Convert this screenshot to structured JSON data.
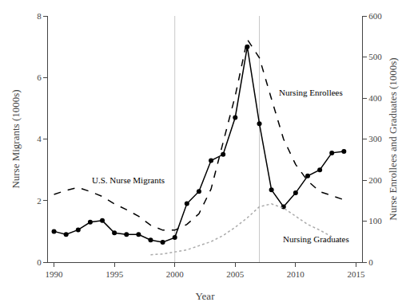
{
  "chart_data": {
    "type": "line",
    "x_label": "Year",
    "y_label": "Nurse Migrants (1000s)",
    "y2_label": "Nurse Enrollees and Graduates (1000s)",
    "series": [
      {
        "name": "Nursing Enrollees",
        "axis": "y2",
        "color": "#000000",
        "line_style": "dashed",
        "x": [
          1990,
          1991,
          1992,
          1993,
          1994,
          1995,
          1996,
          1997,
          1998,
          1999,
          2000,
          2001,
          2002,
          2003,
          2004,
          2005,
          2006,
          2007,
          2008,
          2009,
          2010,
          2011,
          2012,
          2013,
          2014
        ],
        "values": [
          165,
          175,
          182,
          172,
          160,
          142,
          128,
          112,
          90,
          78,
          78,
          92,
          118,
          178,
          292,
          405,
          543,
          498,
          398,
          300,
          238,
          198,
          172,
          162,
          152
        ]
      },
      {
        "name": "Nursing Graduates",
        "axis": "y2",
        "color": "#aaaaaa",
        "line_style": "dotted",
        "x": [
          1998,
          1999,
          2000,
          2001,
          2002,
          2003,
          2004,
          2005,
          2006,
          2007,
          2008,
          2009,
          2010,
          2011,
          2012,
          2013
        ],
        "values": [
          18,
          20,
          25,
          30,
          40,
          50,
          65,
          85,
          108,
          135,
          142,
          132,
          112,
          92,
          78,
          62
        ]
      },
      {
        "name": "U.S. Nurse Migrants",
        "axis": "y",
        "color": "#000000",
        "line_style": "solid",
        "marker": "circle",
        "x": [
          1990,
          1991,
          1992,
          1993,
          1994,
          1995,
          1996,
          1997,
          1998,
          1999,
          2000,
          2001,
          2002,
          2003,
          2004,
          2005,
          2006,
          2007,
          2008,
          2009,
          2010,
          2011,
          2012,
          2013,
          2014
        ],
        "values": [
          1.0,
          0.9,
          1.05,
          1.3,
          1.35,
          0.95,
          0.9,
          0.9,
          0.72,
          0.65,
          0.8,
          1.9,
          2.3,
          3.3,
          3.5,
          4.7,
          7.0,
          4.5,
          2.35,
          1.8,
          2.25,
          2.8,
          3.0,
          3.55,
          3.6
        ]
      }
    ],
    "annotations": [
      {
        "text": "U.S. Nurse Migrants",
        "x": 1993.0,
        "y": 2.45
      },
      {
        "text": "Nursing Enrollees",
        "x": 2008.5,
        "y": 5.3
      },
      {
        "text": "Nursing Graduates",
        "x": 2008.8,
        "y": 0.55
      }
    ],
    "vlines": [
      {
        "x": 2000,
        "color": "#c8c8c8"
      },
      {
        "x": 2007,
        "color": "#c8c8c8"
      }
    ],
    "xlim": [
      1989.5,
      2015.5
    ],
    "xticks": [
      1990,
      1995,
      2000,
      2005,
      2010,
      2015
    ],
    "ylim": [
      0,
      8
    ],
    "yticks": [
      0,
      2,
      4,
      6,
      8
    ],
    "y2lim": [
      0,
      600
    ],
    "y2ticks": [
      0,
      100,
      200,
      300,
      400,
      500,
      600
    ],
    "grid": false
  }
}
